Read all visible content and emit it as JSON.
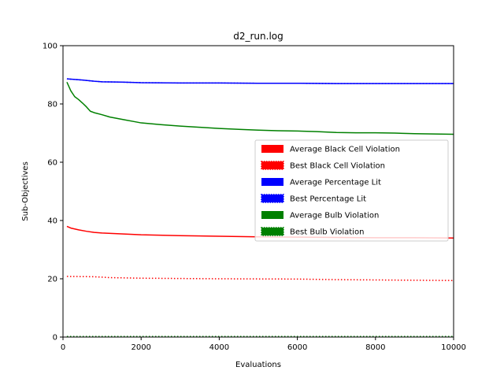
{
  "chart_data": {
    "type": "line",
    "title": "d2_run.log",
    "xlabel": "Evaluations",
    "ylabel": "Sub-Objectives",
    "xlim": [
      0,
      10000
    ],
    "ylim": [
      0,
      100
    ],
    "xticks": [
      0,
      2000,
      4000,
      6000,
      8000,
      10000
    ],
    "yticks": [
      0,
      20,
      40,
      60,
      80,
      100
    ],
    "grid": false,
    "legend_position": "center-right",
    "series": [
      {
        "name": "Average Black Cell Violation",
        "color": "#ff0000",
        "style": "solid",
        "x": [
          100,
          200,
          400,
          600,
          800,
          1000,
          1500,
          2000,
          3000,
          4000,
          5000,
          6000,
          7000,
          8000,
          9000,
          10000
        ],
        "y": [
          38.0,
          37.4,
          36.8,
          36.3,
          35.9,
          35.7,
          35.4,
          35.1,
          34.8,
          34.6,
          34.4,
          34.3,
          34.2,
          34.1,
          34.1,
          34.0
        ]
      },
      {
        "name": "Best Black Cell Violation",
        "color": "#ff0000",
        "style": "dotted",
        "x": [
          100,
          800,
          1200,
          2000,
          4000,
          6000,
          7000,
          8000,
          9000,
          10000
        ],
        "y": [
          20.8,
          20.7,
          20.4,
          20.2,
          20.0,
          19.9,
          19.7,
          19.6,
          19.5,
          19.4
        ]
      },
      {
        "name": "Average Percentage Lit",
        "color": "#0000ff",
        "style": "solid",
        "x": [
          100,
          300,
          500,
          800,
          1000,
          1500,
          2000,
          3000,
          4000,
          5000,
          6000,
          7000,
          8000,
          9000,
          10000
        ],
        "y": [
          88.6,
          88.4,
          88.2,
          87.8,
          87.6,
          87.5,
          87.3,
          87.2,
          87.2,
          87.1,
          87.1,
          87.0,
          87.0,
          87.0,
          87.0
        ]
      },
      {
        "name": "Best Percentage Lit",
        "color": "#0000ff",
        "style": "dotted",
        "x": [
          100,
          300,
          500,
          800,
          1000,
          1500,
          2000,
          3000,
          4000,
          5000,
          6000,
          7000,
          8000,
          9000,
          10000
        ],
        "y": [
          88.6,
          88.4,
          88.2,
          87.8,
          87.6,
          87.5,
          87.3,
          87.2,
          87.2,
          87.1,
          87.1,
          87.0,
          87.0,
          87.0,
          87.0
        ]
      },
      {
        "name": "Average Bulb Violation",
        "color": "#008000",
        "style": "solid",
        "x": [
          100,
          200,
          300,
          400,
          500,
          600,
          700,
          800,
          1000,
          1200,
          1400,
          1600,
          1800,
          2000,
          2500,
          3000,
          3500,
          4000,
          4500,
          5000,
          5500,
          6000,
          6500,
          7000,
          7500,
          8000,
          8500,
          9000,
          9500,
          10000
        ],
        "y": [
          87.5,
          84.5,
          82.5,
          81.5,
          80.3,
          79.0,
          77.5,
          77.0,
          76.3,
          75.5,
          75.0,
          74.5,
          74.0,
          73.5,
          72.9,
          72.4,
          72.0,
          71.6,
          71.3,
          71.0,
          70.8,
          70.7,
          70.5,
          70.2,
          70.1,
          70.1,
          70.0,
          69.8,
          69.7,
          69.6
        ]
      },
      {
        "name": "Best Bulb Violation",
        "color": "#008000",
        "style": "dotted",
        "x": [
          100,
          10000
        ],
        "y": [
          0.2,
          0.2
        ]
      }
    ]
  }
}
